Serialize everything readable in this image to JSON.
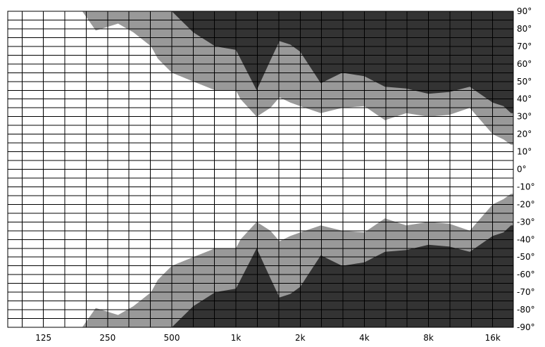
{
  "chart_data": {
    "type": "area",
    "title": "",
    "xlabel": "",
    "ylabel": "",
    "x_scale": "log",
    "xlim": [
      85,
      20000
    ],
    "ylim": [
      -90,
      90
    ],
    "x_ticks": [
      {
        "value": 125,
        "label": "125"
      },
      {
        "value": 250,
        "label": "250"
      },
      {
        "value": 500,
        "label": "500"
      },
      {
        "value": 1000,
        "label": "1k"
      },
      {
        "value": 2000,
        "label": "2k"
      },
      {
        "value": 4000,
        "label": "4k"
      },
      {
        "value": 8000,
        "label": "8k"
      },
      {
        "value": 16000,
        "label": "16k"
      }
    ],
    "y_ticks": [
      {
        "value": 90,
        "label": "90°"
      },
      {
        "value": 80,
        "label": "80°"
      },
      {
        "value": 70,
        "label": "70°"
      },
      {
        "value": 60,
        "label": "60°"
      },
      {
        "value": 50,
        "label": "50°"
      },
      {
        "value": 40,
        "label": "40°"
      },
      {
        "value": 30,
        "label": "30°"
      },
      {
        "value": 20,
        "label": "20°"
      },
      {
        "value": 10,
        "label": "10°"
      },
      {
        "value": 0,
        "label": "0°"
      },
      {
        "value": -10,
        "label": "-10°"
      },
      {
        "value": -20,
        "label": "-20°"
      },
      {
        "value": -30,
        "label": "-30°"
      },
      {
        "value": -40,
        "label": "-40°"
      },
      {
        "value": -50,
        "label": "-50°"
      },
      {
        "value": -60,
        "label": "-60°"
      },
      {
        "value": -70,
        "label": "-70°"
      },
      {
        "value": -80,
        "label": "-80°"
      },
      {
        "value": -90,
        "label": "-90°"
      }
    ],
    "grid": true,
    "series": [
      {
        "fill": "#999999",
        "x": [
          190,
          220,
          280,
          330,
          400,
          430,
          500,
          630,
          800,
          1000,
          1050,
          1250,
          1450,
          1600,
          1800,
          2000,
          2500,
          3150,
          4000,
          5000,
          6300,
          8000,
          10000,
          12500,
          16000,
          18000,
          19500
        ],
        "values": [
          90,
          79,
          83,
          78,
          70,
          63,
          55,
          50,
          45,
          45,
          40,
          30,
          35,
          41,
          38,
          36,
          32,
          35,
          36,
          28,
          32,
          30,
          31,
          35,
          20,
          17,
          14
        ]
      },
      {
        "fill": "#333333",
        "x": [
          500,
          630,
          800,
          1000,
          1250,
          1450,
          1600,
          1800,
          2000,
          2500,
          3150,
          4000,
          5000,
          6300,
          8000,
          10000,
          12500,
          16000,
          18000,
          19500
        ],
        "values": [
          90,
          78,
          70,
          68,
          45,
          62,
          73,
          71,
          67,
          49,
          55,
          53,
          47,
          46,
          43,
          44,
          47,
          38,
          36,
          32
        ]
      }
    ]
  }
}
